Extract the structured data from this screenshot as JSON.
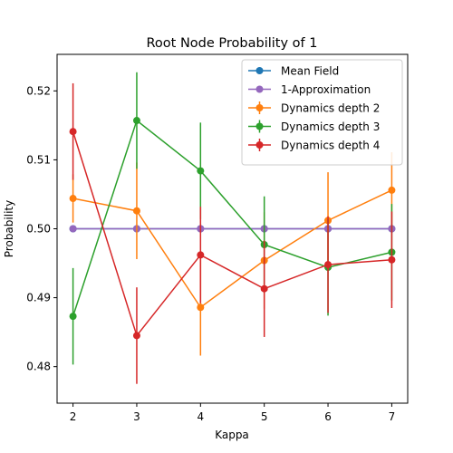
{
  "chart_data": {
    "type": "line",
    "title": "Root Node Probability of 1",
    "xlabel": "Kappa",
    "ylabel": "Probability",
    "x": [
      2,
      3,
      4,
      5,
      6,
      7
    ],
    "xticks": [
      "2",
      "3",
      "4",
      "5",
      "6",
      "7"
    ],
    "yticks": [
      "0.48",
      "0.49",
      "0.50",
      "0.51",
      "0.52"
    ],
    "xlim": [
      1.75,
      7.25
    ],
    "ylim": [
      0.4747,
      0.5253
    ],
    "legend_position": "top-right",
    "series": [
      {
        "name": "Mean Field",
        "color": "#1f77b4",
        "values": [
          0.5,
          0.5,
          0.5,
          0.5,
          0.5,
          0.5
        ],
        "errors": null
      },
      {
        "name": "1-Approximation",
        "color": "#9467bd",
        "values": [
          0.5,
          0.5,
          0.5,
          0.5,
          0.5,
          0.5
        ],
        "errors": null
      },
      {
        "name": "Dynamics depth 2",
        "color": "#ff7f0e",
        "values": [
          0.5044,
          0.5026,
          0.4886,
          0.4954,
          0.5012,
          0.5056
        ],
        "errors": [
          0.0035,
          0.007,
          0.007,
          0.007,
          0.007,
          0.0055
        ]
      },
      {
        "name": "Dynamics depth 3",
        "color": "#2ca02c",
        "values": [
          0.4873,
          0.5157,
          0.5084,
          0.4977,
          0.4944,
          0.4966
        ],
        "errors": [
          0.007,
          0.007,
          0.007,
          0.007,
          0.007,
          0.007
        ]
      },
      {
        "name": "Dynamics depth 4",
        "color": "#d62728",
        "values": [
          0.5141,
          0.4845,
          0.4962,
          0.4913,
          0.4948,
          0.4955
        ],
        "errors": [
          0.007,
          0.007,
          0.007,
          0.007,
          0.007,
          0.007
        ]
      }
    ]
  }
}
